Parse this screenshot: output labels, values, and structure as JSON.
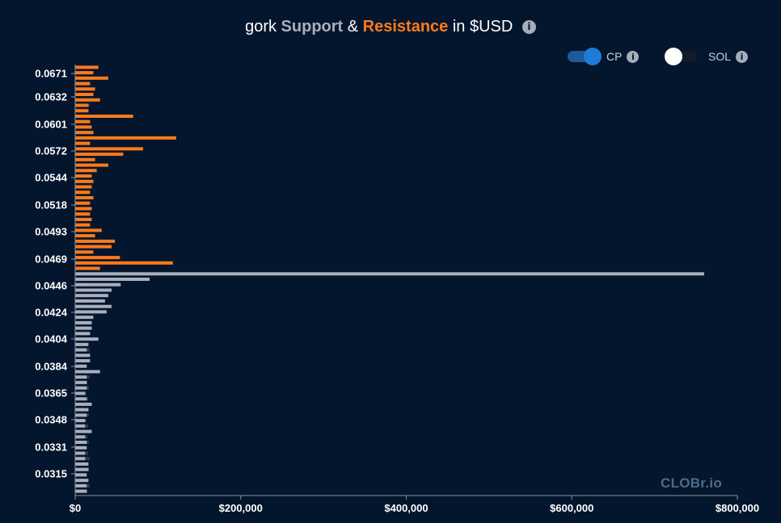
{
  "title": {
    "token": "gork",
    "support": "Support",
    "amp": "&",
    "resistance": "Resistance",
    "currency": "in $USD"
  },
  "toggles": {
    "cp": {
      "label": "CP",
      "on": true
    },
    "sol": {
      "label": "SOL",
      "on": false
    }
  },
  "watermark": "CLOBr.io",
  "colors": {
    "background": "#04162d",
    "support": "#a7afbd",
    "resistance": "#ff7a1a",
    "base_bar": "#273a56"
  },
  "chart_data": {
    "type": "bar",
    "orientation": "horizontal",
    "xlim": [
      0,
      800000
    ],
    "ylim": [
      0.0304,
      0.0681
    ],
    "xticks": [
      "$0",
      "$200,000",
      "$400,000",
      "$600,000",
      "$800,000"
    ],
    "xtick_values": [
      0,
      200000,
      400000,
      600000,
      800000
    ],
    "yticks": [
      "0.0671",
      "0.0632",
      "0.0601",
      "0.0572",
      "0.0544",
      "0.0518",
      "0.0493",
      "0.0469",
      "0.0446",
      "0.0424",
      "0.0404",
      "0.0384",
      "0.0365",
      "0.0348",
      "0.0331",
      "0.0315"
    ],
    "resistance": {
      "name": "Resistance",
      "values": [
        28000,
        22000,
        40000,
        18000,
        24000,
        22000,
        30000,
        16000,
        16000,
        70000,
        18000,
        20000,
        22000,
        122000,
        18000,
        82000,
        58000,
        24000,
        40000,
        26000,
        20000,
        22000,
        20000,
        18000,
        22000,
        18000,
        20000,
        18000,
        20000,
        18000,
        32000,
        24000,
        48000,
        44000,
        22000,
        54000,
        118000,
        30000
      ]
    },
    "support": {
      "name": "Support",
      "values": [
        760000,
        90000,
        55000,
        44000,
        40000,
        36000,
        44000,
        38000,
        22000,
        20000,
        20000,
        18000,
        28000,
        16000,
        14000,
        18000,
        18000,
        14000,
        30000,
        14000,
        14000,
        14000,
        12000,
        14000,
        20000,
        16000,
        14000,
        12000,
        12000,
        20000,
        12000,
        14000,
        14000,
        12000,
        12000,
        16000,
        16000,
        14000,
        16000,
        14000,
        14000
      ]
    }
  }
}
